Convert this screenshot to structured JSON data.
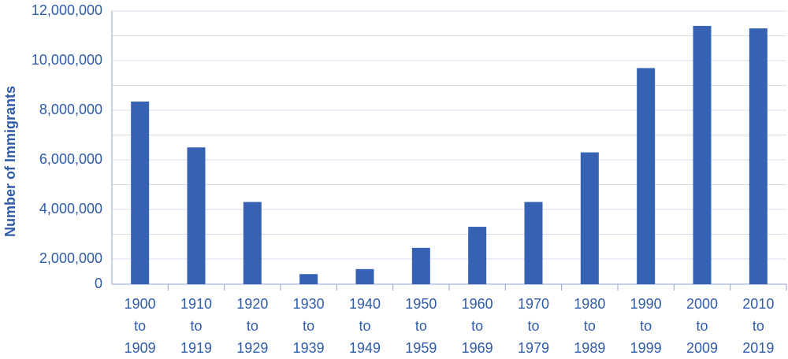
{
  "chart_data": {
    "type": "bar",
    "y_label": "Number of Immigrants",
    "categories": [
      "1900 to 1909",
      "1910 to 1919",
      "1920 to 1929",
      "1930 to 1939",
      "1940 to 1949",
      "1950 to 1959",
      "1960 to 1969",
      "1970 to 1979",
      "1980 to 1989",
      "1990 to 1999",
      "2000 to 2009",
      "2010 to 2019"
    ],
    "values": [
      8350000,
      6500000,
      4300000,
      800000,
      1200000,
      2450000,
      3300000,
      4300000,
      6300000,
      9700000,
      11400000,
      11300000
    ],
    "color": "#3762b3",
    "ylim": [
      0,
      12000000
    ],
    "yticks": [
      0,
      {
        "value": 2000000,
        "label": "2,000,000"
      },
      {
        "value": 4000000,
        "label": "4,000,000"
      },
      {
        "value": 6000000,
        "label": "6,000,000"
      },
      {
        "value": 8000000,
        "label": "8,000,000"
      },
      {
        "value": 10000000,
        "label": "10,000,000"
      },
      {
        "value": 12000000,
        "label": "12,000,000"
      }
    ],
    "minor_yticks": [
      3000000,
      5000000,
      7000000,
      9000000,
      11000000
    ],
    "grid": true
  }
}
